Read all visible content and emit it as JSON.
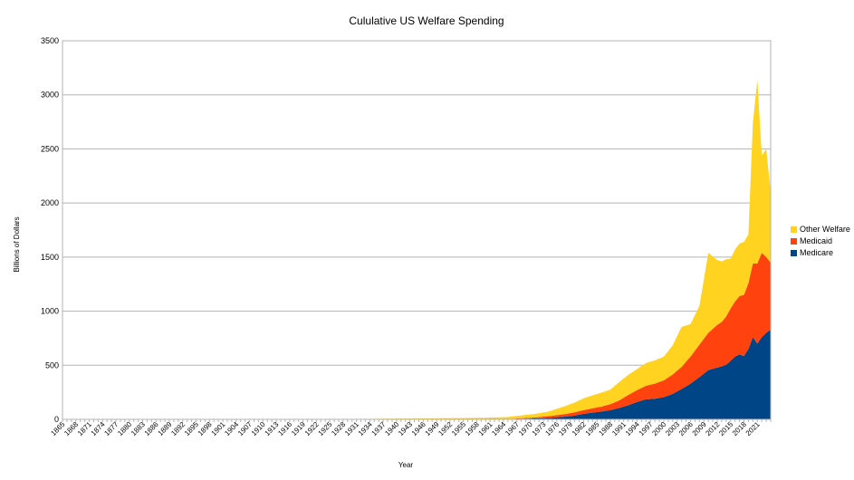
{
  "chart_data": {
    "type": "area",
    "stacked": true,
    "title": "Cululative US Welfare Spending",
    "xlabel": "Year",
    "ylabel": "Billions of Dollars",
    "ylim": [
      0,
      3500
    ],
    "yticks": [
      0,
      500,
      1000,
      1500,
      2000,
      2500,
      3000,
      3500
    ],
    "x_start": 1865,
    "x_end": 2024,
    "x_tick_labels": [
      "1865",
      "1868",
      "1871",
      "1874",
      "1877",
      "1880",
      "1883",
      "1886",
      "1889",
      "1892",
      "1895",
      "1898",
      "1901",
      "1904",
      "1907",
      "1910",
      "1913",
      "1916",
      "1919",
      "1922",
      "1925",
      "1928",
      "1931",
      "1934",
      "1937",
      "1940",
      "1943",
      "1946",
      "1949",
      "1952",
      "1955",
      "1958",
      "1961",
      "1964",
      "1967",
      "1970",
      "1973",
      "1976",
      "1979",
      "1982",
      "1985",
      "1988",
      "1991",
      "1994",
      "1997",
      "2000",
      "2003",
      "2006",
      "2009",
      "2012",
      "2015",
      "2018",
      "2021"
    ],
    "grid": true,
    "legend_position": "right",
    "series": [
      {
        "name": "Medicare",
        "color": "#004586",
        "points": [
          [
            1965,
            0
          ],
          [
            1966,
            2
          ],
          [
            1968,
            5
          ],
          [
            1970,
            7
          ],
          [
            1972,
            9
          ],
          [
            1974,
            13
          ],
          [
            1976,
            19
          ],
          [
            1978,
            25
          ],
          [
            1980,
            35
          ],
          [
            1982,
            50
          ],
          [
            1984,
            62
          ],
          [
            1986,
            72
          ],
          [
            1988,
            85
          ],
          [
            1990,
            105
          ],
          [
            1992,
            130
          ],
          [
            1994,
            160
          ],
          [
            1996,
            185
          ],
          [
            1998,
            190
          ],
          [
            2000,
            205
          ],
          [
            2002,
            235
          ],
          [
            2004,
            280
          ],
          [
            2006,
            330
          ],
          [
            2008,
            390
          ],
          [
            2010,
            455
          ],
          [
            2012,
            478
          ],
          [
            2013,
            490
          ],
          [
            2014,
            505
          ],
          [
            2015,
            540
          ],
          [
            2016,
            580
          ],
          [
            2017,
            600
          ],
          [
            2018,
            585
          ],
          [
            2019,
            650
          ],
          [
            2020,
            760
          ],
          [
            2021,
            700
          ],
          [
            2022,
            760
          ],
          [
            2023,
            800
          ],
          [
            2024,
            830
          ]
        ]
      },
      {
        "name": "Medicaid",
        "color": "#ff420e",
        "points": [
          [
            1965,
            0
          ],
          [
            1966,
            3
          ],
          [
            1968,
            6
          ],
          [
            1970,
            8
          ],
          [
            1972,
            12
          ],
          [
            1974,
            16
          ],
          [
            1976,
            20
          ],
          [
            1978,
            25
          ],
          [
            1980,
            30
          ],
          [
            1982,
            35
          ],
          [
            1984,
            40
          ],
          [
            1986,
            45
          ],
          [
            1988,
            55
          ],
          [
            1990,
            70
          ],
          [
            1992,
            95
          ],
          [
            1994,
            110
          ],
          [
            1996,
            125
          ],
          [
            1998,
            140
          ],
          [
            2000,
            155
          ],
          [
            2002,
            180
          ],
          [
            2004,
            205
          ],
          [
            2006,
            250
          ],
          [
            2008,
            300
          ],
          [
            2010,
            345
          ],
          [
            2012,
            395
          ],
          [
            2013,
            410
          ],
          [
            2014,
            445
          ],
          [
            2015,
            485
          ],
          [
            2016,
            510
          ],
          [
            2017,
            540
          ],
          [
            2018,
            565
          ],
          [
            2019,
            610
          ],
          [
            2020,
            680
          ],
          [
            2021,
            740
          ],
          [
            2022,
            780
          ],
          [
            2023,
            700
          ],
          [
            2024,
            620
          ]
        ]
      },
      {
        "name": "Other Welfare",
        "color": "#ffd320",
        "points": [
          [
            1900,
            1
          ],
          [
            1920,
            2
          ],
          [
            1930,
            3
          ],
          [
            1935,
            5
          ],
          [
            1940,
            7
          ],
          [
            1945,
            8
          ],
          [
            1950,
            10
          ],
          [
            1955,
            12
          ],
          [
            1960,
            15
          ],
          [
            1962,
            18
          ],
          [
            1964,
            20
          ],
          [
            1966,
            22
          ],
          [
            1968,
            25
          ],
          [
            1970,
            30
          ],
          [
            1972,
            35
          ],
          [
            1974,
            42
          ],
          [
            1976,
            58
          ],
          [
            1978,
            75
          ],
          [
            1980,
            90
          ],
          [
            1982,
            110
          ],
          [
            1984,
            120
          ],
          [
            1986,
            130
          ],
          [
            1988,
            135
          ],
          [
            1990,
            170
          ],
          [
            1992,
            185
          ],
          [
            1994,
            195
          ],
          [
            1996,
            210
          ],
          [
            1998,
            215
          ],
          [
            2000,
            220
          ],
          [
            2002,
            270
          ],
          [
            2004,
            370
          ],
          [
            2006,
            300
          ],
          [
            2008,
            360
          ],
          [
            2010,
            740
          ],
          [
            2012,
            600
          ],
          [
            2013,
            560
          ],
          [
            2014,
            530
          ],
          [
            2015,
            460
          ],
          [
            2016,
            480
          ],
          [
            2017,
            485
          ],
          [
            2018,
            490
          ],
          [
            2019,
            450
          ],
          [
            2020,
            1300
          ],
          [
            2021,
            1700
          ],
          [
            2022,
            900
          ],
          [
            2023,
            1000
          ],
          [
            2024,
            650
          ]
        ]
      }
    ]
  }
}
